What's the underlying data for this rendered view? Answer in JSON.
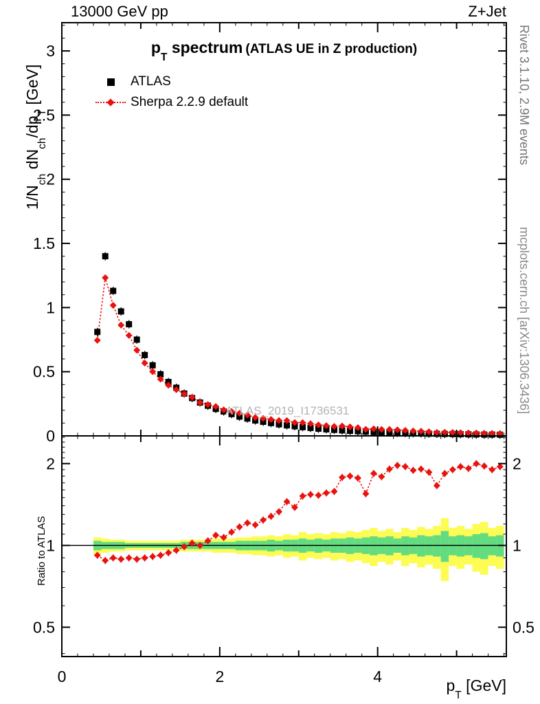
{
  "header": {
    "left": "13000 GeV pp",
    "right": "Z+Jet"
  },
  "title": {
    "p": "p",
    "sub": "T",
    "rest": " spectrum",
    "paren": "(ATLAS UE in Z production)"
  },
  "legend": {
    "entries": [
      {
        "label": "ATLAS"
      },
      {
        "label": "Sherpa 2.2.9 default"
      }
    ]
  },
  "axes": {
    "ylabel_parts": [
      "1/N",
      "ch",
      " dN",
      "ch",
      "/dp",
      "T",
      " [GeV]"
    ],
    "ratio_ylabel": "Ratio to ATLAS",
    "xlabel_parts": [
      "p",
      "T",
      " [GeV]"
    ]
  },
  "watermark": "ATLAS_2019_I1736531",
  "sidebar": {
    "top": "Rivet 3.1.10,  2.9M events",
    "bottom": "mcplots.cern.ch [arXiv:1306.3436]"
  },
  "colors": {
    "atlas": "#000000",
    "sherpa": "#e8120e",
    "band_yellow": "#fcfc54",
    "band_green": "#63db80",
    "frame": "#000000"
  },
  "chart_data": {
    "type": "scatter",
    "title": "pT spectrum (ATLAS UE in Z production)",
    "xlabel": "pT [GeV]",
    "ylabel": "1/Nch dNch/dpT [GeV]",
    "ratio_ylabel": "Ratio to ATLAS",
    "xlim": [
      0,
      5.63
    ],
    "ylim": [
      0,
      3.22
    ],
    "ratio_ylim": [
      0.39,
      2.53
    ],
    "ratio_scale": "log",
    "xticks": [
      0,
      2,
      4
    ],
    "xticks_medium": [
      1,
      3,
      5
    ],
    "xtick_minor_step": 0.2,
    "yticks": [
      0.5,
      1,
      1.5,
      2,
      2.5,
      3
    ],
    "ytick_minor_step": 0.1,
    "ratio_yticks": [
      0.5,
      1,
      2
    ],
    "ratio_yticks_minor": [
      0.4,
      0.6,
      0.7,
      0.8,
      0.9,
      1.1,
      1.2,
      1.3,
      1.4,
      1.5,
      1.6,
      1.7,
      1.8,
      1.9,
      2.1,
      2.2,
      2.3,
      2.4,
      2.5
    ],
    "bin_halfwidth": 0.05,
    "x": [
      0.45,
      0.55,
      0.65,
      0.75,
      0.85,
      0.95,
      1.05,
      1.15,
      1.25,
      1.35,
      1.45,
      1.55,
      1.65,
      1.75,
      1.85,
      1.95,
      2.05,
      2.15,
      2.25,
      2.35,
      2.45,
      2.55,
      2.65,
      2.75,
      2.85,
      2.95,
      3.05,
      3.15,
      3.25,
      3.35,
      3.45,
      3.55,
      3.65,
      3.75,
      3.85,
      3.95,
      4.05,
      4.15,
      4.25,
      4.35,
      4.45,
      4.55,
      4.65,
      4.75,
      4.85,
      4.95,
      5.05,
      5.15,
      5.25,
      5.35,
      5.45,
      5.55
    ],
    "series": [
      {
        "name": "ATLAS",
        "marker": "square",
        "color": "#000000",
        "values": [
          0.81,
          1.4,
          1.13,
          0.97,
          0.87,
          0.75,
          0.63,
          0.55,
          0.48,
          0.42,
          0.375,
          0.33,
          0.295,
          0.26,
          0.235,
          0.21,
          0.19,
          0.17,
          0.15,
          0.135,
          0.12,
          0.11,
          0.1,
          0.09,
          0.082,
          0.075,
          0.068,
          0.062,
          0.056,
          0.051,
          0.047,
          0.043,
          0.039,
          0.036,
          0.033,
          0.03,
          0.028,
          0.026,
          0.024,
          0.022,
          0.02,
          0.019,
          0.017,
          0.016,
          0.015,
          0.014,
          0.013,
          0.012,
          0.011,
          0.01,
          0.01,
          0.009
        ]
      },
      {
        "name": "Sherpa 2.2.9 default",
        "marker": "diamond",
        "color": "#e8120e",
        "line": "dotted",
        "values": [
          0.745,
          1.232,
          1.017,
          0.863,
          0.783,
          0.668,
          0.567,
          0.501,
          0.442,
          0.395,
          0.36,
          0.327,
          0.301,
          0.26,
          0.244,
          0.229,
          0.203,
          0.19,
          0.176,
          0.163,
          0.143,
          0.136,
          0.128,
          0.12,
          0.119,
          0.104,
          0.103,
          0.095,
          0.086,
          0.08,
          0.074,
          0.077,
          0.07,
          0.064,
          0.051,
          0.055,
          0.05,
          0.05,
          0.047,
          0.043,
          0.038,
          0.036,
          0.032,
          0.027,
          0.028,
          0.027,
          0.025,
          0.023,
          0.022,
          0.02,
          0.019,
          0.018
        ]
      }
    ],
    "ratio": {
      "name": "Sherpa / ATLAS",
      "values": [
        0.92,
        0.88,
        0.9,
        0.89,
        0.9,
        0.89,
        0.9,
        0.91,
        0.92,
        0.94,
        0.96,
        0.99,
        1.02,
        1.0,
        1.04,
        1.09,
        1.07,
        1.12,
        1.17,
        1.21,
        1.19,
        1.24,
        1.28,
        1.33,
        1.45,
        1.38,
        1.52,
        1.54,
        1.53,
        1.56,
        1.58,
        1.78,
        1.8,
        1.77,
        1.55,
        1.84,
        1.79,
        1.91,
        1.97,
        1.95,
        1.89,
        1.91,
        1.86,
        1.66,
        1.84,
        1.9,
        1.95,
        1.92,
        2.0,
        1.96,
        1.9,
        1.95
      ],
      "band_yellow_halfwidth": [
        0.07,
        0.06,
        0.05,
        0.05,
        0.04,
        0.04,
        0.04,
        0.04,
        0.04,
        0.04,
        0.04,
        0.05,
        0.05,
        0.05,
        0.05,
        0.06,
        0.06,
        0.06,
        0.07,
        0.07,
        0.08,
        0.08,
        0.09,
        0.08,
        0.1,
        0.09,
        0.12,
        0.1,
        0.11,
        0.1,
        0.12,
        0.11,
        0.13,
        0.12,
        0.14,
        0.16,
        0.13,
        0.15,
        0.12,
        0.16,
        0.14,
        0.17,
        0.15,
        0.18,
        0.26,
        0.16,
        0.18,
        0.15,
        0.2,
        0.22,
        0.16,
        0.18
      ],
      "band_green_halfwidth": [
        0.04,
        0.03,
        0.03,
        0.03,
        0.02,
        0.02,
        0.02,
        0.02,
        0.02,
        0.02,
        0.02,
        0.03,
        0.03,
        0.03,
        0.03,
        0.03,
        0.03,
        0.03,
        0.04,
        0.04,
        0.04,
        0.04,
        0.05,
        0.04,
        0.05,
        0.05,
        0.06,
        0.05,
        0.06,
        0.05,
        0.06,
        0.06,
        0.07,
        0.06,
        0.07,
        0.08,
        0.07,
        0.08,
        0.06,
        0.08,
        0.07,
        0.09,
        0.08,
        0.09,
        0.13,
        0.08,
        0.09,
        0.08,
        0.1,
        0.11,
        0.08,
        0.09
      ]
    }
  }
}
